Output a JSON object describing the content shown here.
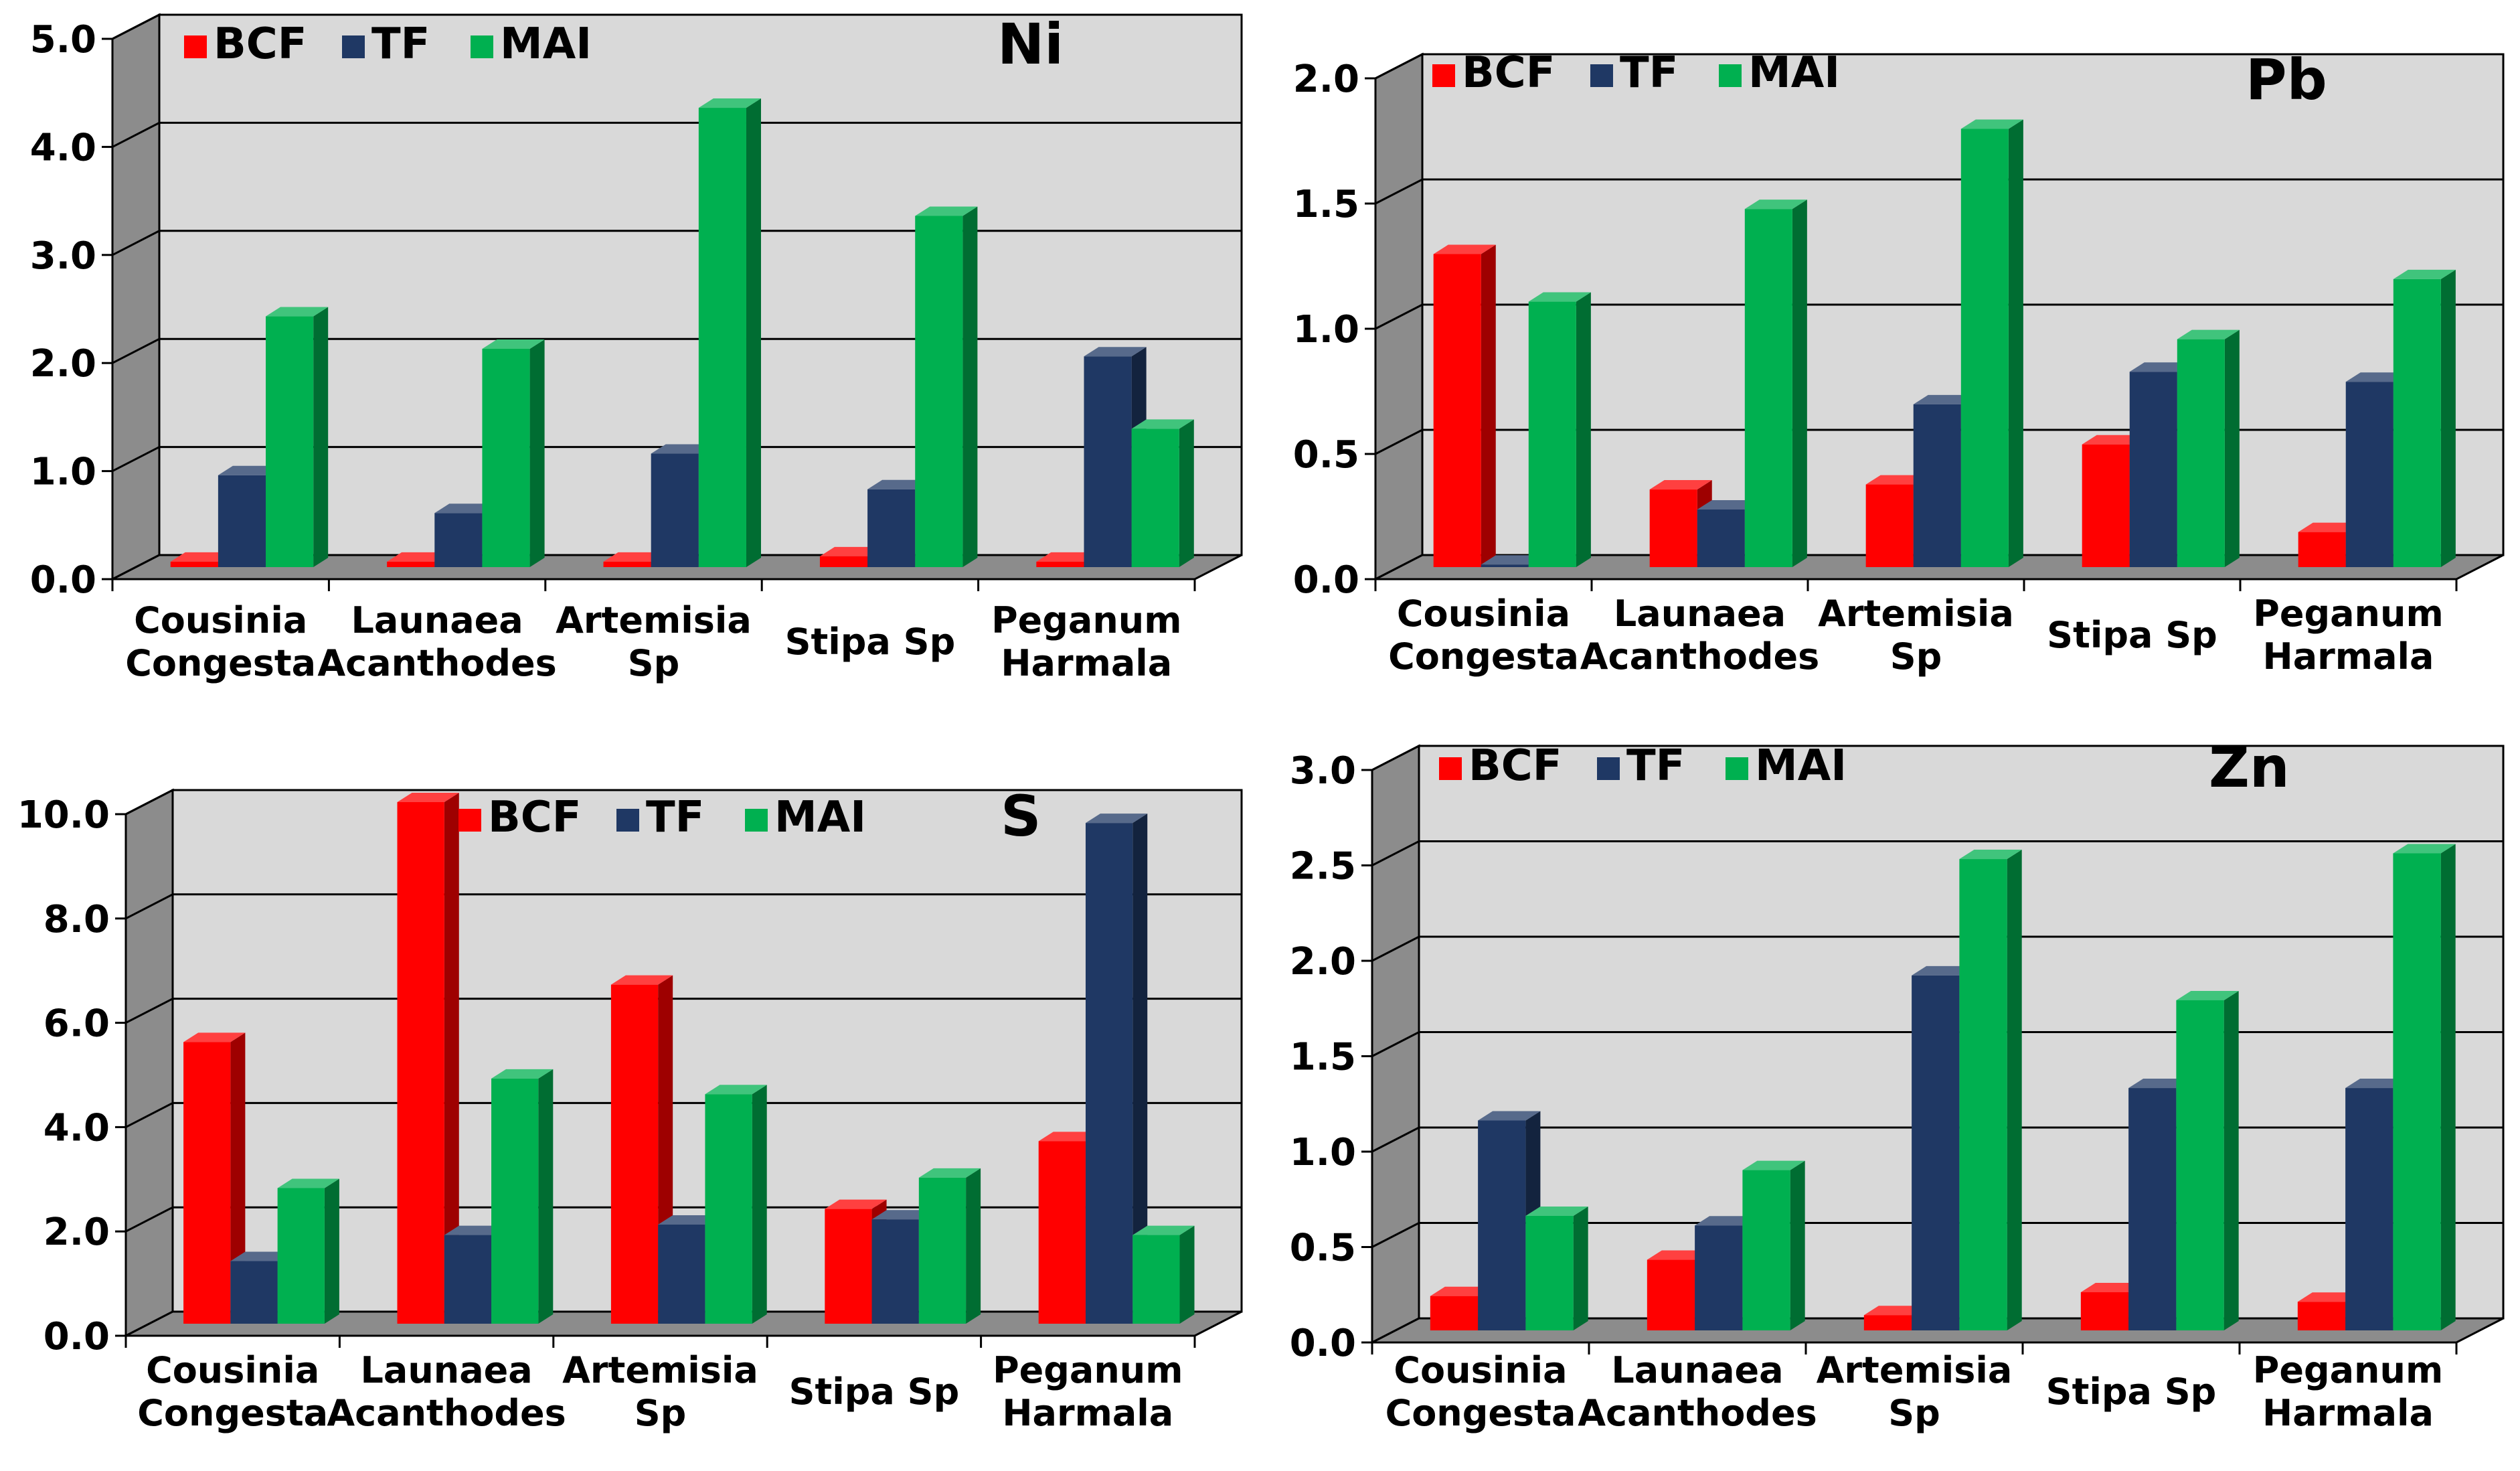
{
  "colors": {
    "BCF": "#ff0000",
    "TF": "#1f3864",
    "MAI": "#00b050",
    "wall": "#d9d9d9",
    "floor": "#8c8c8c"
  },
  "chart_data": [
    {
      "type": "bar",
      "element_label": "Ni",
      "categories": [
        [
          "Cousinia",
          "Congesta"
        ],
        [
          "Launaea",
          "Acanthodes"
        ],
        [
          "Artemisia",
          "Sp"
        ],
        [
          "Stipa Sp"
        ],
        [
          "Peganum",
          "Harmala"
        ]
      ],
      "series": [
        {
          "name": "BCF",
          "values": [
            0.05,
            0.05,
            0.05,
            0.1,
            0.05
          ]
        },
        {
          "name": "TF",
          "values": [
            0.85,
            0.5,
            1.05,
            0.72,
            1.95
          ]
        },
        {
          "name": "MAI",
          "values": [
            2.32,
            2.02,
            4.25,
            3.25,
            1.28
          ]
        }
      ],
      "yticks": [
        "0.0",
        "1.0",
        "2.0",
        "3.0",
        "4.0",
        "5.0"
      ],
      "ylim": [
        0,
        5
      ],
      "legend": "top-left",
      "grid": true
    },
    {
      "type": "bar",
      "element_label": "Pb",
      "categories": [
        [
          "Cousinia",
          "Congesta"
        ],
        [
          "Launaea",
          "Acanthodes"
        ],
        [
          "Artemisia",
          "Sp"
        ],
        [
          "Stipa Sp"
        ],
        [
          "Peganum",
          "Harmala"
        ]
      ],
      "series": [
        {
          "name": "BCF",
          "values": [
            1.25,
            0.31,
            0.33,
            0.49,
            0.14
          ]
        },
        {
          "name": "TF",
          "values": [
            0.01,
            0.23,
            0.65,
            0.78,
            0.74
          ]
        },
        {
          "name": "MAI",
          "values": [
            1.06,
            1.43,
            1.75,
            0.91,
            1.15
          ]
        }
      ],
      "yticks": [
        "0.0",
        "0.5",
        "1.0",
        "1.5",
        "2.0"
      ],
      "ylim": [
        0,
        2
      ],
      "legend": "top-left",
      "grid": true
    },
    {
      "type": "bar",
      "element_label": "S",
      "categories": [
        [
          "Cousinia",
          "Congesta"
        ],
        [
          "Launaea",
          "Acanthodes"
        ],
        [
          "Artemisia",
          "Sp"
        ],
        [
          "Stipa Sp"
        ],
        [
          "Peganum",
          "Harmala"
        ]
      ],
      "series": [
        {
          "name": "BCF",
          "values": [
            5.4,
            10.0,
            6.5,
            2.2,
            3.5
          ]
        },
        {
          "name": "TF",
          "values": [
            1.2,
            1.7,
            1.9,
            2.0,
            9.6
          ]
        },
        {
          "name": "MAI",
          "values": [
            2.6,
            4.7,
            4.4,
            2.8,
            1.7
          ]
        }
      ],
      "yticks": [
        "0.0",
        "2.0",
        "4.0",
        "6.0",
        "8.0",
        "10.0"
      ],
      "ylim": [
        0,
        10
      ],
      "legend": "top-center",
      "grid": true
    },
    {
      "type": "bar",
      "element_label": "Zn",
      "categories": [
        [
          "Cousinia",
          "Congesta"
        ],
        [
          "Launaea",
          "Acanthodes"
        ],
        [
          "Artemisia",
          "Sp"
        ],
        [
          "Stipa Sp"
        ],
        [
          "Peganum",
          "Harmala"
        ]
      ],
      "series": [
        {
          "name": "BCF",
          "values": [
            0.18,
            0.37,
            0.08,
            0.2,
            0.15
          ]
        },
        {
          "name": "TF",
          "values": [
            1.1,
            0.55,
            1.86,
            1.27,
            1.27
          ]
        },
        {
          "name": "MAI",
          "values": [
            0.6,
            0.84,
            2.47,
            1.73,
            2.5
          ]
        }
      ],
      "yticks": [
        "0.0",
        "0.5",
        "1.0",
        "1.5",
        "2.0",
        "2.5",
        "3.0"
      ],
      "ylim": [
        0,
        3
      ],
      "legend": "top-left",
      "grid": true
    }
  ]
}
